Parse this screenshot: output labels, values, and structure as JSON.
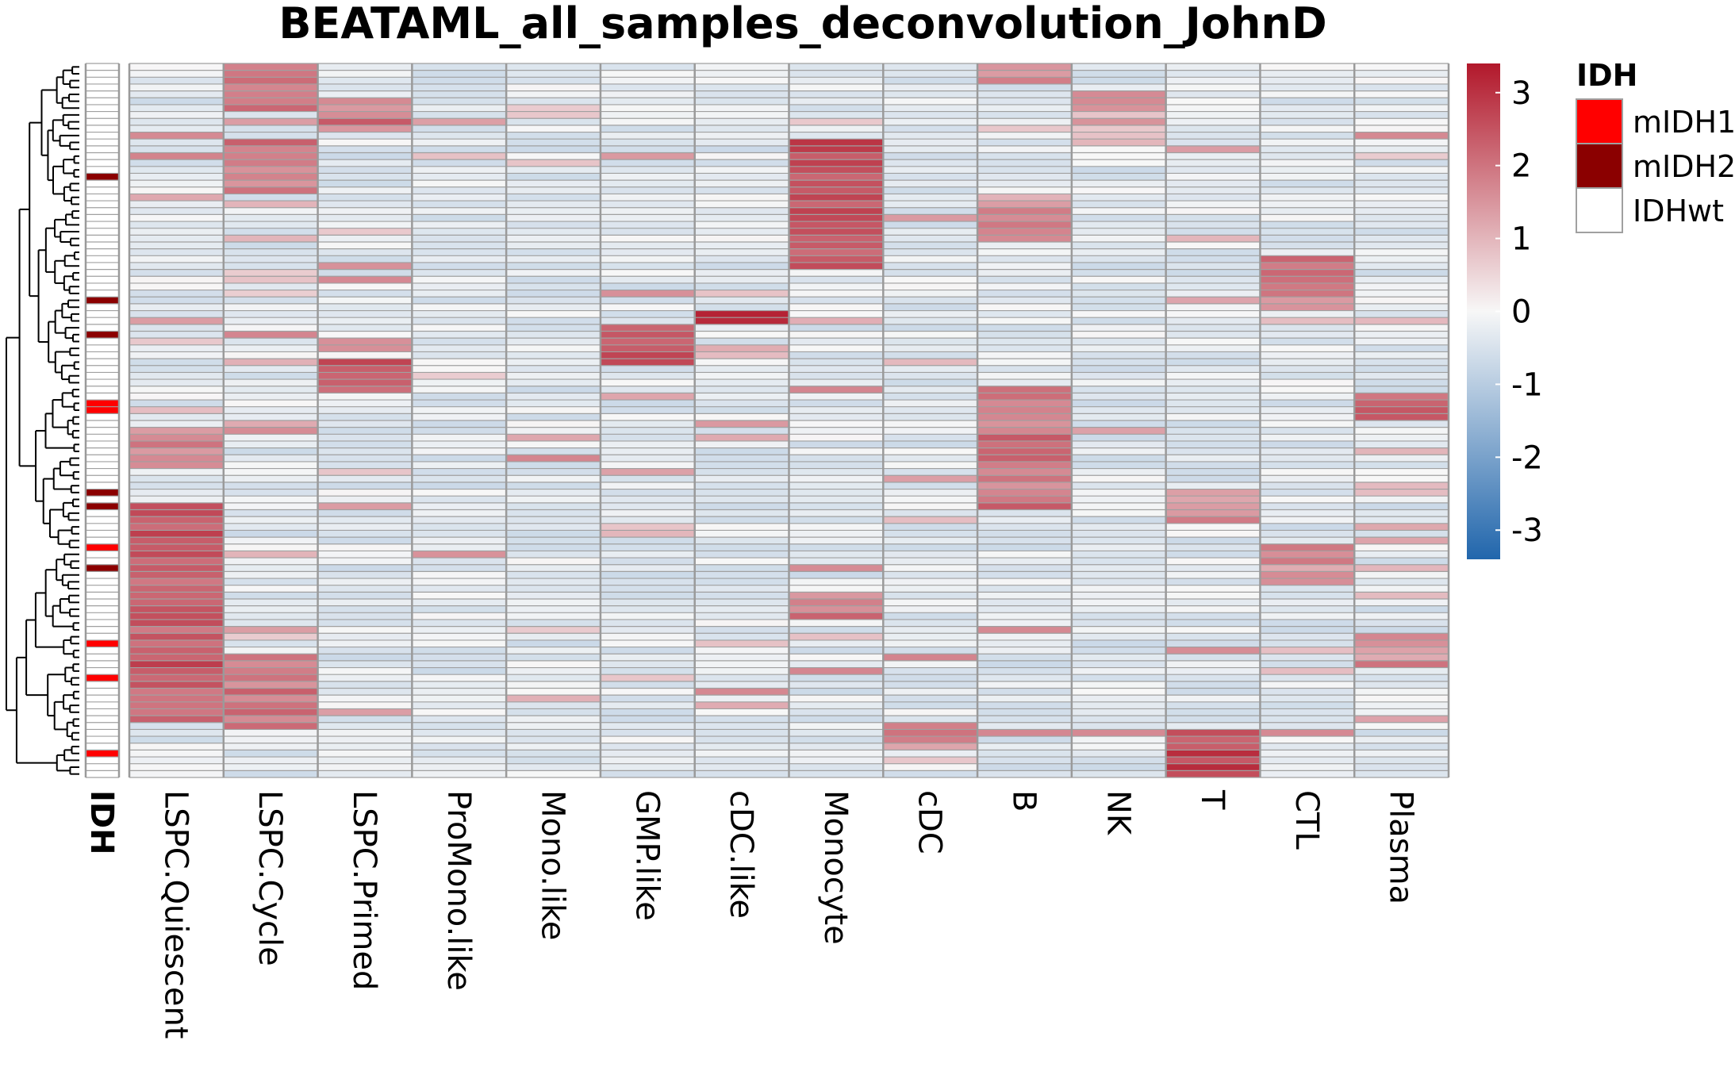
{
  "chart_data": {
    "type": "heatmap",
    "title": "BEATAML_all_samples_deconvolution_JohnD",
    "columns": [
      "LSPC.Quiescent",
      "LSPC.Cycle",
      "LSPC.Primed",
      "ProMono.like",
      "Mono.like",
      "GMP.like",
      "cDC.like",
      "Monocyte",
      "cDC",
      "B",
      "NK",
      "T",
      "CTL",
      "Plasma"
    ],
    "annotation_column": {
      "label": "IDH",
      "legend_title": "IDH",
      "levels": [
        {
          "name": "mIDH1",
          "color": "#ff0000"
        },
        {
          "name": "mIDH2",
          "color": "#8b0000"
        },
        {
          "name": "IDHwt",
          "color": "#ffffff"
        }
      ]
    },
    "colorbar": {
      "min": -3.4,
      "max": 3.4,
      "ticks": [
        "3",
        "2",
        "1",
        "0",
        "-1",
        "-2",
        "-3"
      ],
      "tick_values": [
        3,
        2,
        1,
        0,
        -1,
        -2,
        -3
      ],
      "low_color": "#2166ac",
      "mid_color": "#f7f7f7",
      "high_color": "#b2182b"
    },
    "n_rows": 104,
    "row_dendrogram": true,
    "idh_rows": {
      "mIDH1": [
        49,
        50,
        70,
        84,
        89,
        100
      ],
      "mIDH2": [
        16,
        34,
        39,
        62,
        64,
        73
      ]
    },
    "high_blocks": [
      {
        "column": "LSPC.Quiescent",
        "from_row": 64,
        "to_row": 95,
        "value": 2.4
      },
      {
        "column": "LSPC.Quiescent",
        "from_row": 53,
        "to_row": 58,
        "value": 1.8
      },
      {
        "column": "LSPC.Cycle",
        "from_row": 0,
        "to_row": 6,
        "value": 2.2
      },
      {
        "column": "LSPC.Cycle",
        "from_row": 11,
        "to_row": 18,
        "value": 1.9
      },
      {
        "column": "LSPC.Cycle",
        "from_row": 86,
        "to_row": 96,
        "value": 1.9
      },
      {
        "column": "LSPC.Primed",
        "from_row": 5,
        "to_row": 9,
        "value": 1.9
      },
      {
        "column": "LSPC.Primed",
        "from_row": 43,
        "to_row": 47,
        "value": 2.5
      },
      {
        "column": "GMP.like",
        "from_row": 38,
        "to_row": 43,
        "value": 2.5
      },
      {
        "column": "cDC.like",
        "from_row": 36,
        "to_row": 37,
        "value": 2.8
      },
      {
        "column": "Monocyte",
        "from_row": 11,
        "to_row": 29,
        "value": 2.6
      },
      {
        "column": "Monocyte",
        "from_row": 77,
        "to_row": 80,
        "value": 1.9
      },
      {
        "column": "cDC",
        "from_row": 96,
        "to_row": 99,
        "value": 1.7
      },
      {
        "column": "B",
        "from_row": 0,
        "to_row": 2,
        "value": 1.5
      },
      {
        "column": "B",
        "from_row": 19,
        "to_row": 25,
        "value": 1.5
      },
      {
        "column": "B",
        "from_row": 47,
        "to_row": 64,
        "value": 2.0
      },
      {
        "column": "T",
        "from_row": 97,
        "to_row": 103,
        "value": 2.7
      },
      {
        "column": "T",
        "from_row": 63,
        "to_row": 66,
        "value": 1.5
      },
      {
        "column": "CTL",
        "from_row": 28,
        "to_row": 35,
        "value": 1.9
      },
      {
        "column": "CTL",
        "from_row": 70,
        "to_row": 75,
        "value": 1.5
      },
      {
        "column": "Plasma",
        "from_row": 48,
        "to_row": 51,
        "value": 2.3
      },
      {
        "column": "Plasma",
        "from_row": 84,
        "to_row": 87,
        "value": 1.6
      },
      {
        "column": "NK",
        "from_row": 4,
        "to_row": 11,
        "value": 1.2
      }
    ]
  }
}
